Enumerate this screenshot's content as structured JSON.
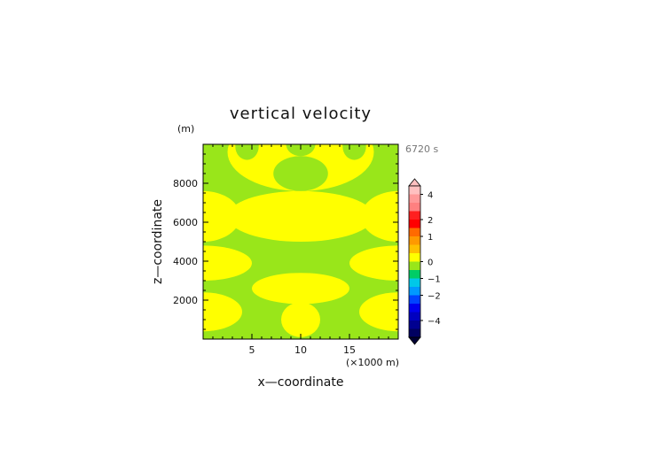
{
  "chart_data": {
    "type": "heatmap",
    "title": "vertical velocity",
    "time_label": "6720 s",
    "xlabel": "x—coordinate",
    "ylabel": "z—coordinate",
    "x_unit_label": "(×1000 m)",
    "y_unit_label": "(m)",
    "xlim": [
      0,
      20
    ],
    "ylim": [
      0,
      10000
    ],
    "x_ticks": [
      5,
      10,
      15
    ],
    "x_tick_labels": [
      "5",
      "10",
      "15"
    ],
    "y_ticks": [
      2000,
      4000,
      6000,
      8000
    ],
    "y_tick_labels": [
      "2000",
      "4000",
      "6000",
      "8000"
    ],
    "field_levels": {
      "background": {
        "range": "0 to 0.5",
        "color": "#99e61a"
      },
      "positive": {
        "range": "0.5 to 1",
        "color": "#ffff00"
      }
    },
    "positive_regions": [
      {
        "shape": "ellipse",
        "cx": 10,
        "cy": 1000,
        "rx": 2.0,
        "ry": 900
      },
      {
        "shape": "ellipse",
        "cx": 0,
        "cy": 1400,
        "rx": 4.0,
        "ry": 1000
      },
      {
        "shape": "ellipse",
        "cx": 20,
        "cy": 1400,
        "rx": 4.0,
        "ry": 1000
      },
      {
        "shape": "ellipse",
        "cx": 10,
        "cy": 2600,
        "rx": 5.0,
        "ry": 800
      },
      {
        "shape": "ellipse",
        "cx": 0,
        "cy": 3900,
        "rx": 5.0,
        "ry": 900
      },
      {
        "shape": "ellipse",
        "cx": 20,
        "cy": 3900,
        "rx": 5.0,
        "ry": 900
      },
      {
        "shape": "ellipse",
        "cx": 10,
        "cy": 6300,
        "rx": 7.5,
        "ry": 1300
      },
      {
        "shape": "ellipse",
        "cx": 0,
        "cy": 6300,
        "rx": 3.8,
        "ry": 1300
      },
      {
        "shape": "ellipse",
        "cx": 20,
        "cy": 6300,
        "rx": 3.8,
        "ry": 1300
      },
      {
        "shape": "ellipse",
        "cx": 10,
        "cy": 9600,
        "rx": 7.5,
        "ry": 2000
      }
    ],
    "background_regions": [
      {
        "shape": "ellipse",
        "cx": 10,
        "cy": 8500,
        "rx": 2.8,
        "ry": 900
      },
      {
        "shape": "ellipse",
        "cx": 4.5,
        "cy": 9900,
        "rx": 1.2,
        "ry": 700
      },
      {
        "shape": "ellipse",
        "cx": 10,
        "cy": 10000,
        "rx": 1.5,
        "ry": 600
      },
      {
        "shape": "ellipse",
        "cx": 15.5,
        "cy": 9900,
        "rx": 1.2,
        "ry": 700
      }
    ],
    "colorbar": {
      "tick_labels": [
        "4",
        "2",
        "1",
        "0",
        "−1",
        "−2",
        "−4"
      ],
      "tick_values": [
        4,
        2,
        1,
        0,
        -1,
        -2,
        -4
      ],
      "bands": [
        {
          "color": "#ffc0c0"
        },
        {
          "color": "#ff9999"
        },
        {
          "color": "#ff8080"
        },
        {
          "color": "#ff2020"
        },
        {
          "color": "#ff0000"
        },
        {
          "color": "#ff6a00"
        },
        {
          "color": "#ff9900"
        },
        {
          "color": "#ffc000"
        },
        {
          "color": "#ffff00"
        },
        {
          "color": "#99e61a"
        },
        {
          "color": "#00cc66"
        },
        {
          "color": "#00c8e8"
        },
        {
          "color": "#0099ff"
        },
        {
          "color": "#0044ff"
        },
        {
          "color": "#0000ee"
        },
        {
          "color": "#0000c0"
        },
        {
          "color": "#000090"
        },
        {
          "color": "#000060"
        }
      ],
      "top_cap_color": "#ffc0c0",
      "bottom_cap_color": "#000033"
    }
  }
}
